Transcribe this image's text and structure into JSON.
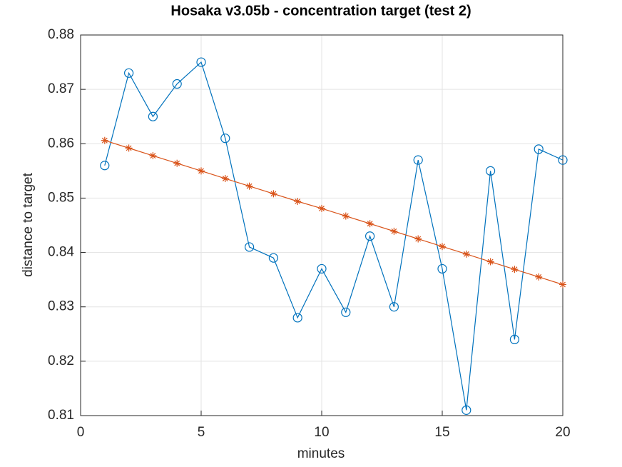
{
  "chart_data": {
    "type": "line",
    "title": "Hosaka v3.05b - concentration target (test 2)",
    "xlabel": "minutes",
    "ylabel": "distance to target",
    "x": [
      1,
      2,
      3,
      4,
      5,
      6,
      7,
      8,
      9,
      10,
      11,
      12,
      13,
      14,
      15,
      16,
      17,
      18,
      19,
      20
    ],
    "series": [
      {
        "color": "#0072bd",
        "marker": "o",
        "values": [
          0.856,
          0.873,
          0.865,
          0.871,
          0.875,
          0.861,
          0.841,
          0.839,
          0.828,
          0.837,
          0.829,
          0.843,
          0.83,
          0.857,
          0.837,
          0.811,
          0.855,
          0.824,
          0.859,
          0.857
        ]
      },
      {
        "color": "#d95319",
        "marker": "*",
        "values": [
          0.8606,
          0.8592,
          0.8578,
          0.8564,
          0.855,
          0.8536,
          0.8522,
          0.8508,
          0.8494,
          0.8481,
          0.8467,
          0.8453,
          0.8439,
          0.8425,
          0.8411,
          0.8397,
          0.8383,
          0.8369,
          0.8355,
          0.8341
        ]
      }
    ],
    "xlim": [
      0,
      20
    ],
    "xticks": [
      0,
      5,
      10,
      15,
      20
    ],
    "ylim": [
      0.81,
      0.88
    ],
    "yticks": [
      0.81,
      0.82,
      0.83,
      0.84,
      0.85,
      0.86,
      0.87,
      0.88
    ],
    "grid": true
  }
}
